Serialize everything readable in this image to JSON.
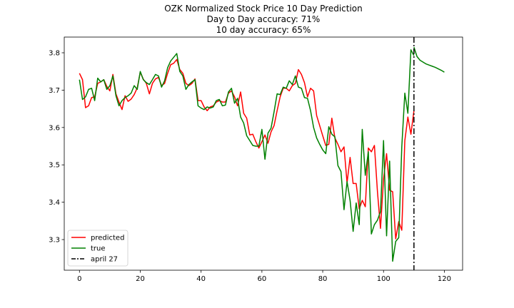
{
  "chart_data": {
    "type": "line",
    "title_lines": [
      "OZK Normalized Stock Price 10 Day Prediction",
      "Day to Day accuracy: 71%",
      "10 day accuracy: 65%"
    ],
    "xlabel": "",
    "ylabel": "",
    "xlim": [
      -5,
      126
    ],
    "ylim": [
      3.218,
      3.842
    ],
    "x_ticks": [
      0,
      20,
      40,
      60,
      80,
      100,
      120
    ],
    "y_ticks": [
      3.3,
      3.4,
      3.5,
      3.6,
      3.7,
      3.8
    ],
    "grid": false,
    "legend_position": "lower-left",
    "series": [
      {
        "name": "predicted",
        "color": "#ff0000",
        "x_start": 0,
        "values": [
          3.745,
          3.728,
          3.653,
          3.658,
          3.68,
          3.682,
          3.718,
          3.722,
          3.728,
          3.71,
          3.698,
          3.742,
          3.69,
          3.668,
          3.648,
          3.685,
          3.67,
          3.676,
          3.688,
          3.706,
          3.748,
          3.729,
          3.718,
          3.69,
          3.718,
          3.73,
          3.734,
          3.712,
          3.718,
          3.745,
          3.768,
          3.772,
          3.782,
          3.755,
          3.745,
          3.718,
          3.712,
          3.718,
          3.73,
          3.672,
          3.672,
          3.655,
          3.645,
          3.655,
          3.658,
          3.668,
          3.672,
          3.668,
          3.668,
          3.692,
          3.698,
          3.682,
          3.658,
          3.695,
          3.638,
          3.625,
          3.58,
          3.582,
          3.562,
          3.545,
          3.562,
          3.58,
          3.558,
          3.588,
          3.605,
          3.645,
          3.682,
          3.705,
          3.705,
          3.698,
          3.712,
          3.718,
          3.755,
          3.742,
          3.72,
          3.682,
          3.705,
          3.698,
          3.632,
          3.605,
          3.578,
          3.552,
          3.555,
          3.625,
          3.572,
          3.555,
          3.535,
          3.548,
          3.452,
          3.52,
          3.45,
          3.45,
          3.382,
          3.405,
          3.388,
          3.545,
          3.535,
          3.552,
          3.428,
          3.33,
          3.462,
          3.53,
          3.432,
          3.428,
          3.302,
          3.348,
          3.325,
          3.565,
          3.628,
          3.582,
          3.645
        ]
      },
      {
        "name": "true",
        "color": "#008000",
        "x_start": 0,
        "values": [
          3.728,
          3.675,
          3.682,
          3.702,
          3.705,
          3.672,
          3.732,
          3.722,
          3.728,
          3.702,
          3.712,
          3.738,
          3.685,
          3.658,
          3.672,
          3.68,
          3.685,
          3.692,
          3.712,
          3.702,
          3.75,
          3.728,
          3.72,
          3.715,
          3.728,
          3.742,
          3.738,
          3.708,
          3.725,
          3.76,
          3.778,
          3.788,
          3.798,
          3.75,
          3.738,
          3.702,
          3.715,
          3.722,
          3.728,
          3.658,
          3.652,
          3.648,
          3.655,
          3.652,
          3.655,
          3.672,
          3.675,
          3.658,
          3.66,
          3.695,
          3.705,
          3.665,
          3.678,
          3.628,
          3.612,
          3.578,
          3.565,
          3.552,
          3.55,
          3.55,
          3.595,
          3.515,
          3.585,
          3.598,
          3.642,
          3.69,
          3.688,
          3.708,
          3.705,
          3.725,
          3.715,
          3.738,
          3.708,
          3.705,
          3.68,
          3.678,
          3.645,
          3.6,
          3.572,
          3.555,
          3.54,
          3.53,
          3.602,
          3.582,
          3.575,
          3.498,
          3.482,
          3.38,
          3.455,
          3.405,
          3.322,
          3.398,
          3.34,
          3.595,
          3.472,
          3.535,
          3.315,
          3.34,
          3.352,
          3.375,
          3.565,
          3.31,
          3.51,
          3.242,
          3.295,
          3.305,
          3.548,
          3.692,
          3.638,
          3.808,
          3.792
        ]
      },
      {
        "name": "",
        "color": "#008000",
        "x_start": 110,
        "values": [
          3.815,
          3.79,
          3.78,
          3.775,
          3.77,
          3.767,
          3.764,
          3.761,
          3.757,
          3.753,
          3.748
        ]
      }
    ],
    "vline": {
      "name": "april 27",
      "x": 110,
      "color": "#000000",
      "style": "dash-dot"
    }
  }
}
